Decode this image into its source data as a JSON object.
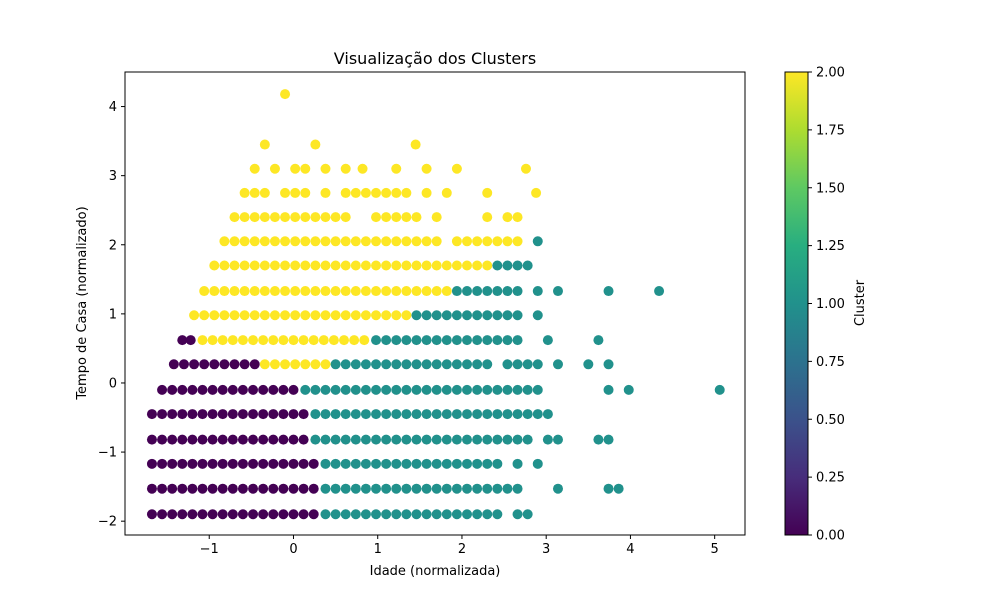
{
  "chart_data": {
    "type": "scatter",
    "title": "Visualização dos Clusters",
    "xlabel": "Idade (normalizada)",
    "ylabel": "Tempo de Casa (normalizado)",
    "xlim": [
      -2.0,
      5.36
    ],
    "ylim": [
      -2.2,
      4.5
    ],
    "x_ticks": [
      -1,
      0,
      1,
      2,
      3,
      4,
      5
    ],
    "x_tick_labels": [
      "−1",
      "0",
      "1",
      "2",
      "3",
      "4",
      "5"
    ],
    "y_ticks": [
      -2,
      -1,
      0,
      1,
      2,
      3,
      4
    ],
    "y_tick_labels": [
      "−2",
      "−1",
      "0",
      "1",
      "2",
      "3",
      "4"
    ],
    "grid": false,
    "colormap": "viridis",
    "colorbar": {
      "label": "Cluster",
      "min": 0.0,
      "max": 2.0,
      "ticks": [
        0.0,
        0.25,
        0.5,
        0.75,
        1.0,
        1.25,
        1.5,
        1.75,
        2.0
      ],
      "tick_labels": [
        "0.00",
        "0.25",
        "0.50",
        "0.75",
        "1.00",
        "1.25",
        "1.50",
        "1.75",
        "2.00"
      ]
    },
    "cluster_colors": {
      "0": "#440154",
      "1": "#21918c",
      "2": "#fde725"
    },
    "x_step": 0.12,
    "rows": [
      {
        "y": 4.18,
        "groups": [
          [
            2,
            [
              -0.1
            ]
          ]
        ]
      },
      {
        "y": 3.45,
        "groups": [
          [
            2,
            [
              -0.34,
              0.26,
              1.45
            ]
          ]
        ]
      },
      {
        "y": 3.1,
        "groups": [
          [
            2,
            [
              -0.46,
              -0.22,
              0.02,
              0.14,
              0.38,
              0.62,
              0.82,
              1.22,
              1.58,
              1.94,
              2.76
            ]
          ]
        ]
      },
      {
        "y": 2.75,
        "groups": [
          [
            2,
            [
              -0.58,
              -0.46,
              -0.34,
              -0.1,
              0.02,
              0.14,
              0.38,
              0.62,
              0.74,
              0.86,
              0.98,
              1.1,
              1.22,
              1.34,
              1.58,
              1.82,
              2.3,
              2.88
            ]
          ]
        ]
      },
      {
        "y": 2.4,
        "groups": [
          [
            2,
            [
              [
                -0.7,
                0.62
              ],
              [
                0.98,
                1.46
              ],
              1.7,
              2.3,
              2.54,
              2.66
            ]
          ]
        ]
      },
      {
        "y": 2.05,
        "groups": [
          [
            2,
            [
              [
                -0.82,
                1.7
              ],
              [
                1.94,
                2.66
              ]
            ]
          ],
          [
            1,
            [
              2.9
            ]
          ]
        ]
      },
      {
        "y": 1.7,
        "groups": [
          [
            2,
            [
              [
                -0.94,
                2.3
              ]
            ]
          ],
          [
            1,
            [
              [
                2.42,
                2.78
              ]
            ]
          ]
        ]
      },
      {
        "y": 1.33,
        "groups": [
          [
            2,
            [
              [
                -1.06,
                1.82
              ]
            ]
          ],
          [
            1,
            [
              [
                1.94,
                2.66
              ],
              2.9,
              3.14,
              3.74,
              4.34
            ]
          ]
        ]
      },
      {
        "y": 0.98,
        "groups": [
          [
            2,
            [
              [
                -1.18,
                1.34
              ]
            ]
          ],
          [
            1,
            [
              [
                1.46,
                2.66
              ],
              2.9
            ]
          ]
        ]
      },
      {
        "y": 0.62,
        "groups": [
          [
            0,
            [
              -1.32,
              -1.22
            ]
          ],
          [
            2,
            [
              [
                -1.08,
                0.86
              ]
            ]
          ],
          [
            1,
            [
              [
                0.98,
                2.66
              ],
              3.02,
              3.62
            ]
          ]
        ]
      },
      {
        "y": 0.27,
        "groups": [
          [
            0,
            [
              [
                -1.42,
                -0.46
              ]
            ]
          ],
          [
            2,
            [
              [
                -0.34,
                0.38
              ]
            ]
          ],
          [
            1,
            [
              [
                0.5,
                2.3
              ],
              [
                2.54,
                2.9
              ],
              3.14,
              3.5,
              3.74
            ]
          ]
        ]
      },
      {
        "y": -0.1,
        "groups": [
          [
            0,
            [
              [
                -1.56,
                0.02
              ]
            ]
          ],
          [
            1,
            [
              [
                0.14,
                2.9
              ],
              3.74,
              3.98,
              5.06
            ]
          ]
        ]
      },
      {
        "y": -0.45,
        "groups": [
          [
            0,
            [
              [
                -1.68,
                0.14
              ]
            ]
          ],
          [
            1,
            [
              [
                0.26,
                3.02
              ]
            ]
          ]
        ]
      },
      {
        "y": -0.82,
        "groups": [
          [
            0,
            [
              [
                -1.68,
                0.14
              ]
            ]
          ],
          [
            1,
            [
              [
                0.26,
                2.78
              ],
              3.02,
              3.14,
              3.62,
              3.74
            ]
          ]
        ]
      },
      {
        "y": -1.17,
        "groups": [
          [
            0,
            [
              [
                -1.68,
                0.26
              ]
            ]
          ],
          [
            1,
            [
              [
                0.38,
                2.42
              ],
              2.66,
              2.9
            ]
          ]
        ]
      },
      {
        "y": -1.53,
        "groups": [
          [
            0,
            [
              [
                -1.68,
                0.26
              ]
            ]
          ],
          [
            1,
            [
              [
                0.38,
                2.66
              ],
              3.14,
              3.74,
              3.86
            ]
          ]
        ]
      },
      {
        "y": -1.9,
        "groups": [
          [
            0,
            [
              [
                -1.68,
                0.26
              ]
            ]
          ],
          [
            1,
            [
              [
                0.38,
                2.42
              ],
              2.66,
              2.78
            ]
          ]
        ]
      }
    ]
  }
}
